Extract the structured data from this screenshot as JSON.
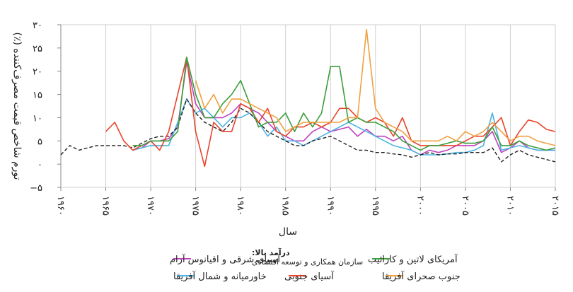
{
  "chart_data": {
    "type": "line",
    "xlabel": "سال",
    "ylabel": "تورم شاخص قیمت مصرف‌کننده (٪)",
    "xlim": [
      1960,
      2015
    ],
    "ylim": [
      -5,
      30
    ],
    "y_ticks": [
      -5,
      0,
      5,
      10,
      15,
      20,
      25,
      30
    ],
    "y_tick_labels": [
      "−۵",
      "۰",
      "۵",
      "۱۰",
      "۱۵",
      "۲۰",
      "۲۵",
      "۳۰"
    ],
    "x_ticks": [
      1960,
      1965,
      1970,
      1975,
      1980,
      1985,
      1990,
      1995,
      2000,
      2005,
      2010,
      2015
    ],
    "x_tick_labels": [
      "۱۹۶۰",
      "۱۹۶۵",
      "۱۹۷۰",
      "۱۹۷۵",
      "۱۹۸۰",
      "۱۹۸۵",
      "۱۹۹۰",
      "۱۹۹۵",
      "۲۰۰۰",
      "۲۰۰۵",
      "۲۰۱۰",
      "۲۰۱۵"
    ],
    "grid": "vertical",
    "legend_position": "bottom",
    "series": [
      {
        "name": "آسیای شرقی و اقیانوس آرام",
        "color": "#c040c0",
        "dash": "solid",
        "x": [
          1968,
          1969,
          1970,
          1971,
          1972,
          1973,
          1974,
          1975,
          1976,
          1977,
          1978,
          1979,
          1980,
          1981,
          1982,
          1983,
          1984,
          1985,
          1986,
          1987,
          1988,
          1989,
          1990,
          1991,
          1992,
          1993,
          1994,
          1995,
          1996,
          1997,
          1998,
          1999,
          2000,
          2001,
          2002,
          2003,
          2004,
          2005,
          2006,
          2007,
          2008,
          2009,
          2010,
          2011,
          2012,
          2013,
          2014,
          2015
        ],
        "y": [
          3,
          3.5,
          5,
          5,
          5.5,
          8,
          22,
          13,
          10,
          10,
          10,
          11,
          13,
          12,
          11,
          9,
          7,
          6,
          5,
          5,
          7,
          8,
          7,
          7.5,
          8,
          6,
          7.5,
          6,
          6,
          5,
          6,
          3,
          2,
          3,
          2.5,
          3,
          4,
          4,
          4,
          5,
          7,
          2.5,
          3.5,
          5,
          3.5,
          3,
          3,
          3
        ]
      },
      {
        "name": "خاورمیانه و شمال آفریقا",
        "color": "#4bb3e3",
        "dash": "solid",
        "x": [
          1968,
          1969,
          1970,
          1971,
          1972,
          1973,
          1974,
          1975,
          1976,
          1977,
          1978,
          1979,
          1980,
          1981,
          1982,
          1983,
          1984,
          1985,
          1986,
          1987,
          1988,
          1989,
          1990,
          1991,
          1992,
          1993,
          1994,
          1995,
          1996,
          1997,
          1998,
          1999,
          2000,
          2001,
          2002,
          2003,
          2004,
          2005,
          2006,
          2007,
          2008,
          2009,
          2010,
          2011,
          2012,
          2013,
          2014,
          2015
        ],
        "y": [
          3,
          3.5,
          4,
          4,
          4,
          9,
          14,
          11,
          12,
          10,
          8,
          10,
          10,
          11,
          9,
          6,
          8,
          5,
          5,
          4,
          5,
          6,
          7,
          8,
          9,
          8,
          7,
          6,
          5,
          4,
          3.5,
          3,
          2,
          2,
          2,
          2.2,
          2.5,
          2.5,
          3,
          4,
          11,
          3,
          3.5,
          4,
          3.5,
          3,
          3,
          3
        ]
      },
      {
        "name": "درآمد بالا: سازمان همکاری و توسعه اقتصادی",
        "color": "#222222",
        "dash": "dashed",
        "x": [
          1960,
          1961,
          1962,
          1963,
          1964,
          1965,
          1966,
          1967,
          1968,
          1969,
          1970,
          1971,
          1972,
          1973,
          1974,
          1975,
          1976,
          1977,
          1978,
          1979,
          1980,
          1981,
          1982,
          1983,
          1984,
          1985,
          1986,
          1987,
          1988,
          1989,
          1990,
          1991,
          1992,
          1993,
          1994,
          1995,
          1996,
          1997,
          1998,
          1999,
          2000,
          2001,
          2002,
          2003,
          2004,
          2005,
          2006,
          2007,
          2008,
          2009,
          2010,
          2011,
          2012,
          2013,
          2014,
          2015
        ],
        "y": [
          2,
          4,
          3,
          3.5,
          4,
          4,
          4,
          4,
          3.5,
          4.5,
          5.5,
          6,
          6,
          8,
          14,
          11,
          9,
          8,
          7,
          9,
          12,
          11,
          9,
          7,
          6,
          5,
          4,
          4,
          5,
          5.5,
          6,
          5,
          4,
          3,
          3,
          2.5,
          2.5,
          2.2,
          2,
          1.5,
          2,
          2.5,
          2,
          2.2,
          2.2,
          2.5,
          2.5,
          2.5,
          3.5,
          0.5,
          2,
          3,
          2,
          1.5,
          1,
          0.5
        ]
      },
      {
        "name": "آسیای جنوبی",
        "color": "#e8432a",
        "dash": "solid",
        "x": [
          1965,
          1966,
          1967,
          1968,
          1969,
          1970,
          1971,
          1972,
          1973,
          1974,
          1975,
          1976,
          1977,
          1978,
          1979,
          1980,
          1981,
          1982,
          1983,
          1984,
          1985,
          1986,
          1987,
          1988,
          1989,
          1990,
          1991,
          1992,
          1993,
          1994,
          1995,
          1996,
          1997,
          1998,
          1999,
          2000,
          2001,
          2002,
          2003,
          2004,
          2005,
          2006,
          2007,
          2008,
          2009,
          2010,
          2011,
          2012,
          2013,
          2014,
          2015
        ],
        "y": [
          7,
          9,
          5,
          3,
          4,
          5,
          3,
          7,
          15,
          23,
          7,
          -0.5,
          9,
          7,
          7,
          13,
          12,
          9,
          12,
          7,
          6,
          8,
          8,
          9,
          8,
          9,
          12,
          12,
          10,
          9,
          10,
          9,
          6,
          10,
          5,
          4,
          4,
          4,
          4,
          4,
          5,
          6,
          6,
          8,
          10,
          4,
          7,
          9.5,
          9,
          7.5,
          7
        ]
      },
      {
        "name": "آمریکای لاتین و کارائیب",
        "color": "#3a9e3a",
        "dash": "solid",
        "x": [
          1968,
          1969,
          1970,
          1971,
          1972,
          1973,
          1974,
          1975,
          1976,
          1977,
          1978,
          1979,
          1980,
          1981,
          1982,
          1983,
          1984,
          1985,
          1986,
          1987,
          1988,
          1989,
          1990,
          1991,
          1992,
          1993,
          1994,
          1995,
          1996,
          1997,
          1998,
          1999,
          2000,
          2001,
          2002,
          2003,
          2004,
          2005,
          2006,
          2007,
          2008,
          2009,
          2010,
          2011,
          2012,
          2013,
          2014,
          2015
        ],
        "y": [
          4,
          4,
          5,
          5,
          5,
          7,
          23,
          15,
          10,
          10,
          13,
          15,
          18,
          13,
          8,
          9,
          9,
          11,
          7,
          11,
          8,
          11,
          21,
          21,
          9,
          10,
          9,
          9,
          8,
          7,
          5,
          4,
          3,
          4,
          4,
          4.5,
          5,
          4.5,
          4.5,
          5,
          8,
          4,
          4,
          5,
          4,
          3.5,
          3,
          3.5
        ]
      },
      {
        "name": "جنوب صحرای آفریقا",
        "color": "#f0a040",
        "dash": "solid",
        "x": [
          1975,
          1976,
          1977,
          1978,
          1979,
          1980,
          1981,
          1982,
          1983,
          1984,
          1985,
          1986,
          1987,
          1988,
          1989,
          1990,
          1991,
          1992,
          1993,
          1994,
          1995,
          1996,
          1997,
          1998,
          1999,
          2000,
          2001,
          2002,
          2003,
          2004,
          2005,
          2006,
          2007,
          2008,
          2009,
          2010,
          2011,
          2012,
          2013,
          2014,
          2015
        ],
        "y": [
          18,
          12,
          15,
          11,
          14,
          14,
          13,
          12,
          11,
          10,
          7,
          8,
          9,
          9,
          9,
          9,
          9,
          10,
          10,
          29,
          12,
          9,
          8,
          7,
          5,
          5,
          5,
          5,
          6,
          5,
          7,
          6,
          7,
          9,
          7,
          5,
          6,
          6,
          5,
          4.5,
          4
        ]
      }
    ]
  },
  "legend": {
    "row1": {
      "item1": "آسیای شرقی و اقیانوس آرام",
      "item2_title": "درآمد بالا:",
      "item2_sub": "سازمان همکاری و توسعه اقتصادی",
      "item3": "آمریکای لاتین و کارائیب"
    },
    "row2": {
      "item1": "خاورمیانه و شمال آفریقا",
      "item2": "آسیای جنوبی",
      "item3": "جنوب صحرای آفریقا"
    }
  }
}
